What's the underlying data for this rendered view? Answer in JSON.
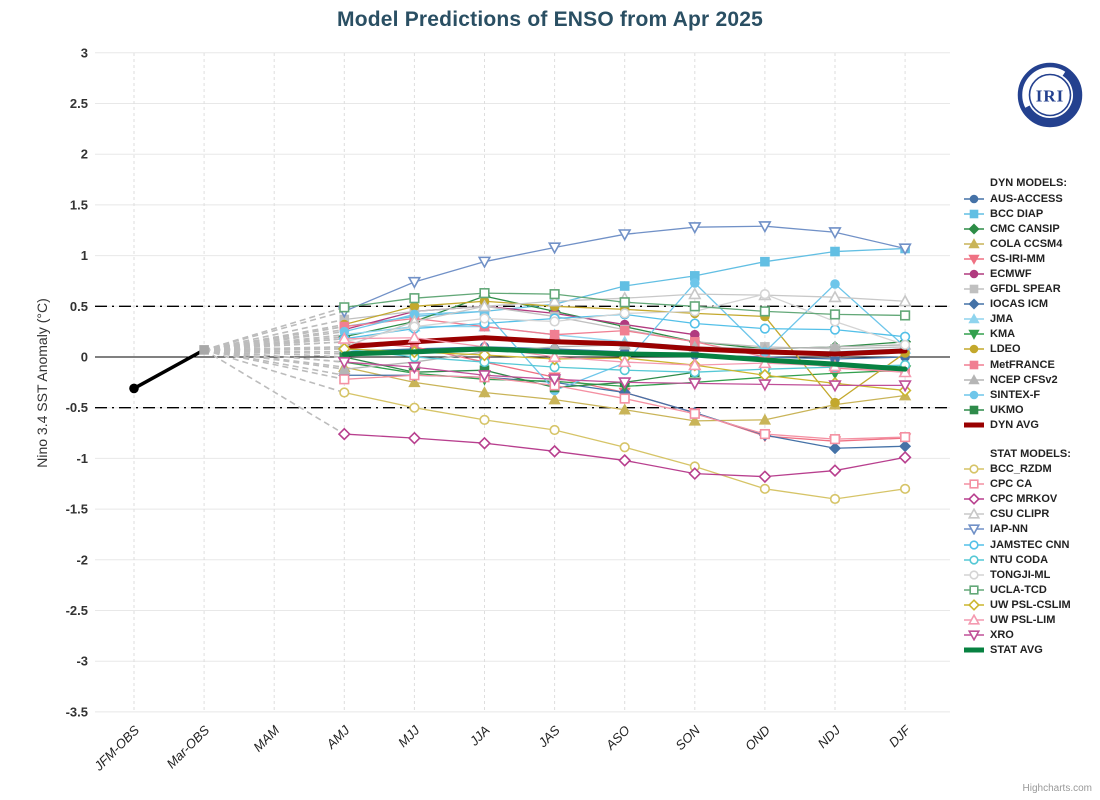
{
  "header": {
    "title": "Model Predictions of ENSO from Apr 2025"
  },
  "page": {
    "credit": "Highcharts.com"
  },
  "logo": {
    "text": "IRI"
  },
  "legend": {
    "dyn_header": "DYN MODELS:",
    "stat_header": "STAT MODELS:"
  },
  "chart_data": {
    "type": "line",
    "title": "Model Predictions of ENSO from Apr 2025",
    "xlabel": "",
    "ylabel": "Nino 3.4 SST Anomaly (°C)",
    "ylim": [
      -3.5,
      3
    ],
    "yticks": [
      3,
      2.5,
      2,
      1.5,
      1,
      0.5,
      0,
      -0.5,
      -1,
      -1.5,
      -2,
      -2.5,
      -3,
      -3.5
    ],
    "grid": true,
    "legend_position": "right",
    "reference_lines": {
      "solid": [
        0
      ],
      "dashdot": [
        0.5,
        -0.5
      ]
    },
    "categories": [
      "JFM-OBS",
      "Mar-OBS",
      "MAM",
      "AMJ",
      "MJJ",
      "JJA",
      "JAS",
      "ASO",
      "SON",
      "OND",
      "NDJ",
      "DJF"
    ],
    "observation": {
      "name": "OBS",
      "color": "#000000",
      "marker2_color": "#a8a8a8",
      "values": [
        -0.31,
        0.07
      ]
    },
    "fan": {
      "color": "#bcbcbc",
      "dash": "6 4"
    },
    "forecast_start_index": 3,
    "series": [
      {
        "name": "AUS-ACCESS",
        "group": "dyn",
        "color": "#4572a7",
        "marker": {
          "shape": "circle",
          "filled": true
        },
        "values": [
          0.05,
          0.08,
          0.1,
          0.08,
          0.05,
          0.02,
          0.0,
          -0.02,
          0.0
        ]
      },
      {
        "name": "BCC DIAP",
        "group": "dyn",
        "color": "#62bfe3",
        "marker": {
          "shape": "square",
          "filled": true
        },
        "values": [
          0.3,
          0.4,
          0.45,
          0.52,
          0.7,
          0.8,
          0.94,
          1.04,
          1.07
        ]
      },
      {
        "name": "CMC CANSIP",
        "group": "dyn",
        "color": "#2d8c46",
        "marker": {
          "shape": "diamond",
          "filled": true
        },
        "values": [
          0.2,
          0.35,
          0.6,
          0.45,
          0.3,
          0.15,
          0.08,
          0.1,
          0.15
        ]
      },
      {
        "name": "COLA CCSM4",
        "group": "dyn",
        "color": "#c9b458",
        "marker": {
          "shape": "triangle",
          "filled": true
        },
        "values": [
          -0.1,
          -0.25,
          -0.35,
          -0.42,
          -0.52,
          -0.63,
          -0.62,
          -0.47,
          -0.38
        ]
      },
      {
        "name": "CS-IRI-MM",
        "group": "dyn",
        "color": "#ef7183",
        "marker": {
          "shape": "triangle-down",
          "filled": true
        },
        "values": [
          0.15,
          0.1,
          -0.05,
          -0.2,
          -0.35,
          -0.55,
          -0.78,
          -0.83,
          -0.8
        ]
      },
      {
        "name": "ECMWF",
        "group": "dyn",
        "color": "#b13a7f",
        "marker": {
          "shape": "circle",
          "filled": true
        },
        "values": [
          0.27,
          0.45,
          0.5,
          0.43,
          0.32,
          0.22,
          null,
          null,
          null
        ]
      },
      {
        "name": "GFDL SPEAR",
        "group": "dyn",
        "color": "#c0c0c0",
        "marker": {
          "shape": "square",
          "filled": true
        },
        "values": [
          0.37,
          0.45,
          0.5,
          0.4,
          0.27,
          0.15,
          0.1,
          0.08,
          0.1
        ]
      },
      {
        "name": "IOCAS ICM",
        "group": "dyn",
        "color": "#4572a7",
        "marker": {
          "shape": "diamond",
          "filled": true
        },
        "values": [
          -0.18,
          -0.18,
          -0.2,
          -0.25,
          -0.35,
          -0.55,
          -0.77,
          -0.9,
          -0.88
        ]
      },
      {
        "name": "JMA",
        "group": "dyn",
        "color": "#8fd4ee",
        "marker": {
          "shape": "triangle",
          "filled": true
        },
        "values": [
          0.22,
          0.3,
          0.3,
          0.22,
          0.15,
          0.1,
          0.05,
          0.05,
          0.08
        ]
      },
      {
        "name": "KMA",
        "group": "dyn",
        "color": "#33a04e",
        "marker": {
          "shape": "triangle-down",
          "filled": true
        },
        "values": [
          -0.05,
          -0.16,
          -0.22,
          -0.24,
          -0.29,
          -0.25,
          -0.2,
          -0.16,
          -0.13
        ]
      },
      {
        "name": "LDEO",
        "group": "dyn",
        "color": "#c3a82c",
        "marker": {
          "shape": "circle",
          "filled": true
        },
        "values": [
          0.32,
          0.5,
          0.55,
          0.5,
          0.47,
          0.43,
          0.4,
          -0.45,
          0.04
        ]
      },
      {
        "name": "MetFRANCE",
        "group": "dyn",
        "color": "#f07f92",
        "marker": {
          "shape": "square",
          "filled": true
        },
        "values": [
          0.3,
          0.38,
          0.3,
          0.22,
          0.26,
          0.15,
          0.0,
          -0.11,
          -0.15
        ]
      },
      {
        "name": "NCEP CFSv2",
        "group": "dyn",
        "color": "#b5b5b5",
        "marker": {
          "shape": "triangle",
          "filled": true
        },
        "values": [
          -0.12,
          -0.05,
          0.05,
          0.1,
          0.12,
          0.1,
          0.08,
          0.1,
          0.12
        ]
      },
      {
        "name": "SINTEX-F",
        "group": "dyn",
        "color": "#6ec6ea",
        "marker": {
          "shape": "circle",
          "filled": true
        },
        "values": [
          0.25,
          0.42,
          0.45,
          -0.33,
          -0.06,
          0.73,
          0.05,
          0.72,
          0.1
        ]
      },
      {
        "name": "UKMO",
        "group": "dyn",
        "color": "#2f8b4a",
        "marker": {
          "shape": "square",
          "filled": true
        },
        "values": [
          0.0,
          -0.15,
          -0.13,
          -0.3,
          -0.25,
          -0.15,
          null,
          null,
          null
        ]
      },
      {
        "name": "DYN AVG",
        "group": "dyn",
        "color": "#990000",
        "width": 5,
        "marker": {
          "shape": "none",
          "filled": true
        },
        "values": [
          0.1,
          0.15,
          0.19,
          0.15,
          0.13,
          0.08,
          0.05,
          0.03,
          0.06
        ]
      },
      {
        "name": "BCC_RZDM",
        "group": "stat",
        "color": "#d6c467",
        "marker": {
          "shape": "circle",
          "filled": false
        },
        "values": [
          -0.35,
          -0.5,
          -0.62,
          -0.72,
          -0.89,
          -1.08,
          -1.3,
          -1.4,
          -1.3
        ]
      },
      {
        "name": "CPC CA",
        "group": "stat",
        "color": "#f490a2",
        "marker": {
          "shape": "square",
          "filled": false
        },
        "values": [
          -0.22,
          -0.18,
          -0.2,
          -0.28,
          -0.41,
          -0.56,
          -0.76,
          -0.81,
          -0.79
        ]
      },
      {
        "name": "CPC MRKOV",
        "group": "stat",
        "color": "#b83f8e",
        "marker": {
          "shape": "diamond",
          "filled": false
        },
        "values": [
          -0.76,
          -0.8,
          -0.85,
          -0.93,
          -1.02,
          -1.15,
          -1.18,
          -1.12,
          -0.99
        ]
      },
      {
        "name": "CSU CLIPR",
        "group": "stat",
        "color": "#c8c8c8",
        "marker": {
          "shape": "triangle",
          "filled": false
        },
        "values": [
          0.1,
          0.35,
          0.5,
          0.55,
          0.58,
          0.62,
          0.61,
          0.59,
          0.55
        ]
      },
      {
        "name": "IAP-NN",
        "group": "stat",
        "color": "#7191c7",
        "marker": {
          "shape": "triangle-down",
          "filled": false
        },
        "values": [
          0.45,
          0.74,
          0.94,
          1.08,
          1.21,
          1.28,
          1.29,
          1.23,
          1.07
        ]
      },
      {
        "name": "JAMSTEC CNN",
        "group": "stat",
        "color": "#53c0e8",
        "marker": {
          "shape": "circle",
          "filled": false
        },
        "values": [
          0.18,
          0.28,
          0.33,
          0.38,
          0.42,
          0.33,
          0.28,
          0.27,
          0.2
        ]
      },
      {
        "name": "NTU CODA",
        "group": "stat",
        "color": "#55c8d5",
        "marker": {
          "shape": "circle",
          "filled": false
        },
        "values": [
          0.08,
          0.0,
          -0.05,
          -0.1,
          -0.13,
          -0.15,
          -0.12,
          -0.1,
          -0.08
        ]
      },
      {
        "name": "TONGJI-ML",
        "group": "stat",
        "color": "#d4d4d4",
        "marker": {
          "shape": "circle",
          "filled": false
        },
        "values": [
          0.15,
          0.3,
          0.38,
          0.35,
          0.43,
          0.45,
          0.62,
          0.35,
          0.12
        ]
      },
      {
        "name": "UCLA-TCD",
        "group": "stat",
        "color": "#63a878",
        "marker": {
          "shape": "square",
          "filled": false
        },
        "values": [
          0.49,
          0.58,
          0.63,
          0.62,
          0.54,
          0.5,
          0.45,
          0.42,
          0.41
        ]
      },
      {
        "name": "UW PSL-CSLIM",
        "group": "stat",
        "color": "#ccb62e",
        "marker": {
          "shape": "diamond",
          "filled": false
        },
        "values": [
          0.08,
          0.05,
          0.02,
          -0.02,
          -0.01,
          -0.08,
          -0.18,
          -0.26,
          -0.33
        ]
      },
      {
        "name": "UW PSL-LIM",
        "group": "stat",
        "color": "#f49ab0",
        "marker": {
          "shape": "triangle",
          "filled": false
        },
        "values": [
          0.18,
          0.19,
          0.1,
          0.0,
          -0.05,
          -0.08,
          -0.06,
          -0.09,
          -0.15
        ]
      },
      {
        "name": "XRO",
        "group": "stat",
        "color": "#c05098",
        "marker": {
          "shape": "triangle-down",
          "filled": false
        },
        "values": [
          -0.05,
          -0.1,
          -0.18,
          -0.22,
          -0.25,
          -0.26,
          -0.27,
          -0.28,
          -0.28
        ]
      },
      {
        "name": "STAT AVG",
        "group": "stat",
        "color": "#078141",
        "width": 5,
        "marker": {
          "shape": "none",
          "filled": true
        },
        "values": [
          0.03,
          0.05,
          0.08,
          0.05,
          0.03,
          0.02,
          -0.03,
          -0.07,
          -0.12
        ]
      }
    ]
  }
}
